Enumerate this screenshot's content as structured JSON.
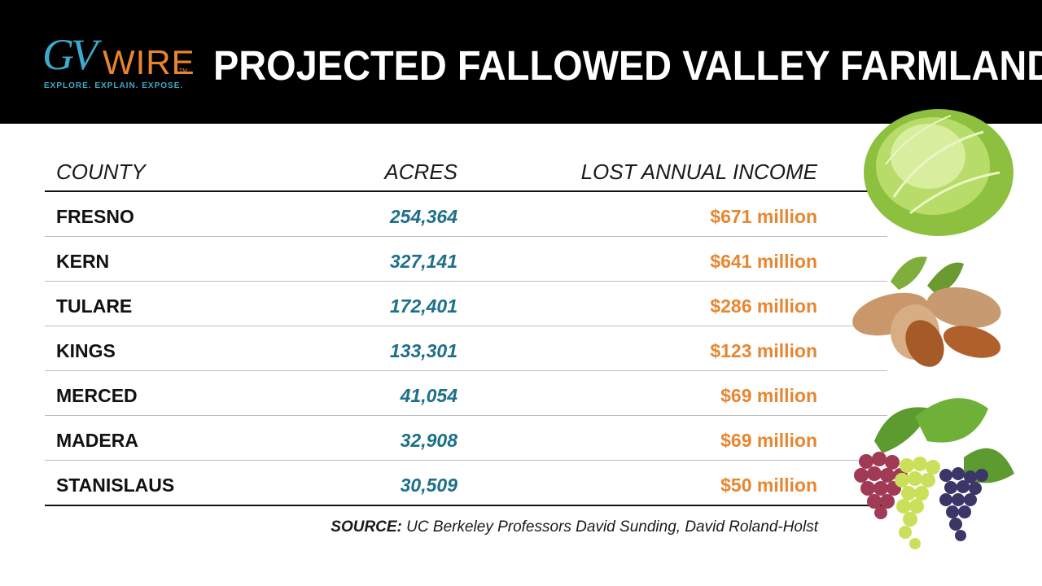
{
  "brand": {
    "logo_mark": "GV",
    "logo_word": "WIRE",
    "logo_tm": "TM",
    "tagline": "EXPLORE. EXPLAIN. EXPOSE."
  },
  "colors": {
    "header_bg": "#000000",
    "acres_text": "#1d6f8a",
    "income_text": "#e8862f",
    "logo_blue": "#3fa9c9",
    "logo_orange": "#e8862f"
  },
  "chart_data": {
    "type": "table",
    "title": "PROJECTED FALLOWED VALLEY FARMLAND",
    "columns": [
      "COUNTY",
      "ACRES",
      "LOST ANNUAL INCOME"
    ],
    "rows": [
      {
        "county": "FRESNO",
        "acres": "254,364",
        "income": "$671 million"
      },
      {
        "county": "KERN",
        "acres": "327,141",
        "income": "$641 million"
      },
      {
        "county": "TULARE",
        "acres": "172,401",
        "income": "$286 million"
      },
      {
        "county": "KINGS",
        "acres": "133,301",
        "income": "$123 million"
      },
      {
        "county": "MERCED",
        "acres": "41,054",
        "income": "$69 million"
      },
      {
        "county": "MADERA",
        "acres": "32,908",
        "income": "$69 million"
      },
      {
        "county": "STANISLAUS",
        "acres": "30,509",
        "income": "$50 million"
      }
    ],
    "source_label": "SOURCE:",
    "source_text": " UC Berkeley Professors David Sunding, David Roland-Holst"
  },
  "images": {
    "lettuce": "lettuce-illustration",
    "almonds": "almonds-illustration",
    "grapes": "grapes-illustration"
  }
}
